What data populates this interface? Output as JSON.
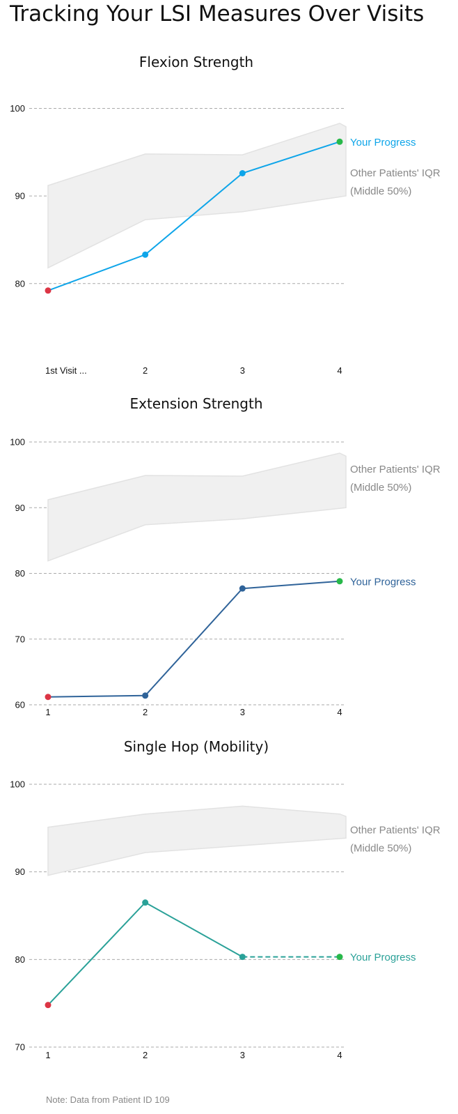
{
  "page": {
    "title": "Tracking Your LSI Measures Over Visits",
    "note": "Note: Data from Patient ID 109"
  },
  "colors": {
    "band": "#f0f0f0",
    "grid": "#aaaaaa",
    "first_point": "#dc3545",
    "last_point": "#28b84a"
  },
  "chart_data": [
    {
      "type": "line",
      "title": "Flexion Strength",
      "x": [
        1,
        2,
        3,
        4
      ],
      "tick_labels": [
        "1st Visit ...",
        "2",
        "3",
        "4"
      ],
      "ylim": [
        76,
        101
      ],
      "yticks": [
        80,
        90,
        100
      ],
      "grid": true,
      "color": "#0ea5e9",
      "series": [
        {
          "name": "Your Progress",
          "values": [
            79.2,
            83.3,
            92.6,
            96.2
          ]
        }
      ],
      "iqr": {
        "low": [
          81.8,
          87.3,
          88.2,
          89.9
        ],
        "high": [
          91.2,
          94.8,
          94.7,
          98.3
        ]
      },
      "iqr_label": [
        "Other Patients' IQR",
        "(Middle 50%)"
      ],
      "dashed_last_segment": false
    },
    {
      "type": "line",
      "title": "Extension Strength",
      "x": [
        1,
        2,
        3,
        4
      ],
      "tick_labels": [
        "1",
        "2",
        "3",
        "4"
      ],
      "ylim": [
        60,
        100
      ],
      "yticks": [
        60,
        70,
        80,
        90,
        100
      ],
      "grid": true,
      "color": "#2f6399",
      "series": [
        {
          "name": "Your Progress",
          "values": [
            61.2,
            61.4,
            77.7,
            78.8
          ]
        }
      ],
      "iqr": {
        "low": [
          81.9,
          87.4,
          88.3,
          89.9
        ],
        "high": [
          91.2,
          94.9,
          94.8,
          98.3
        ]
      },
      "iqr_label": [
        "Other Patients' IQR",
        "(Middle 50%)"
      ],
      "dashed_last_segment": false
    },
    {
      "type": "line",
      "title": "Single Hop (Mobility)",
      "x": [
        1,
        2,
        3,
        4
      ],
      "tick_labels": [
        "1",
        "2",
        "3",
        "4"
      ],
      "ylim": [
        70,
        100
      ],
      "yticks": [
        70,
        80,
        90,
        100
      ],
      "grid": true,
      "color": "#2aa198",
      "series": [
        {
          "name": "Your Progress",
          "values": [
            74.8,
            86.5,
            80.3,
            80.3
          ]
        }
      ],
      "iqr": {
        "low": [
          89.6,
          92.2,
          93.0,
          93.8
        ],
        "high": [
          95.1,
          96.6,
          97.5,
          96.6
        ]
      },
      "iqr_label": [
        "Other Patients' IQR",
        "(Middle 50%)"
      ],
      "dashed_last_segment": true
    }
  ]
}
